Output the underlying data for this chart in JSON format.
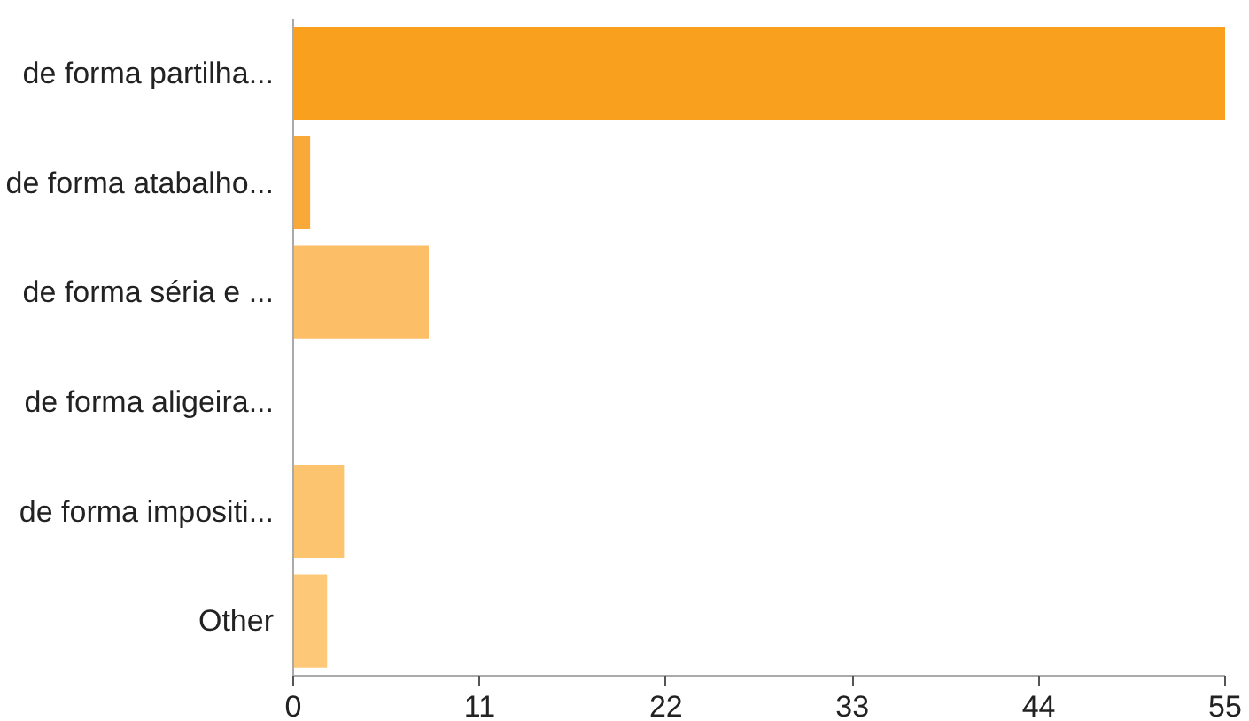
{
  "chart_data": {
    "type": "bar",
    "orientation": "horizontal",
    "categories": [
      "de forma partilha...",
      "de forma atabalho...",
      "de forma séria e ...",
      "de forma aligeira...",
      "de forma impositi...",
      "Other"
    ],
    "values": [
      55,
      1,
      8,
      0,
      3,
      2
    ],
    "colors": [
      "#f9a11f",
      "#f9a93a",
      "#fdbe68",
      "#fdbe68",
      "#fdc46f",
      "#fdc878"
    ],
    "xlim": [
      0,
      55
    ],
    "xticks": [
      0,
      11,
      22,
      33,
      44,
      55
    ],
    "grid": false
  }
}
